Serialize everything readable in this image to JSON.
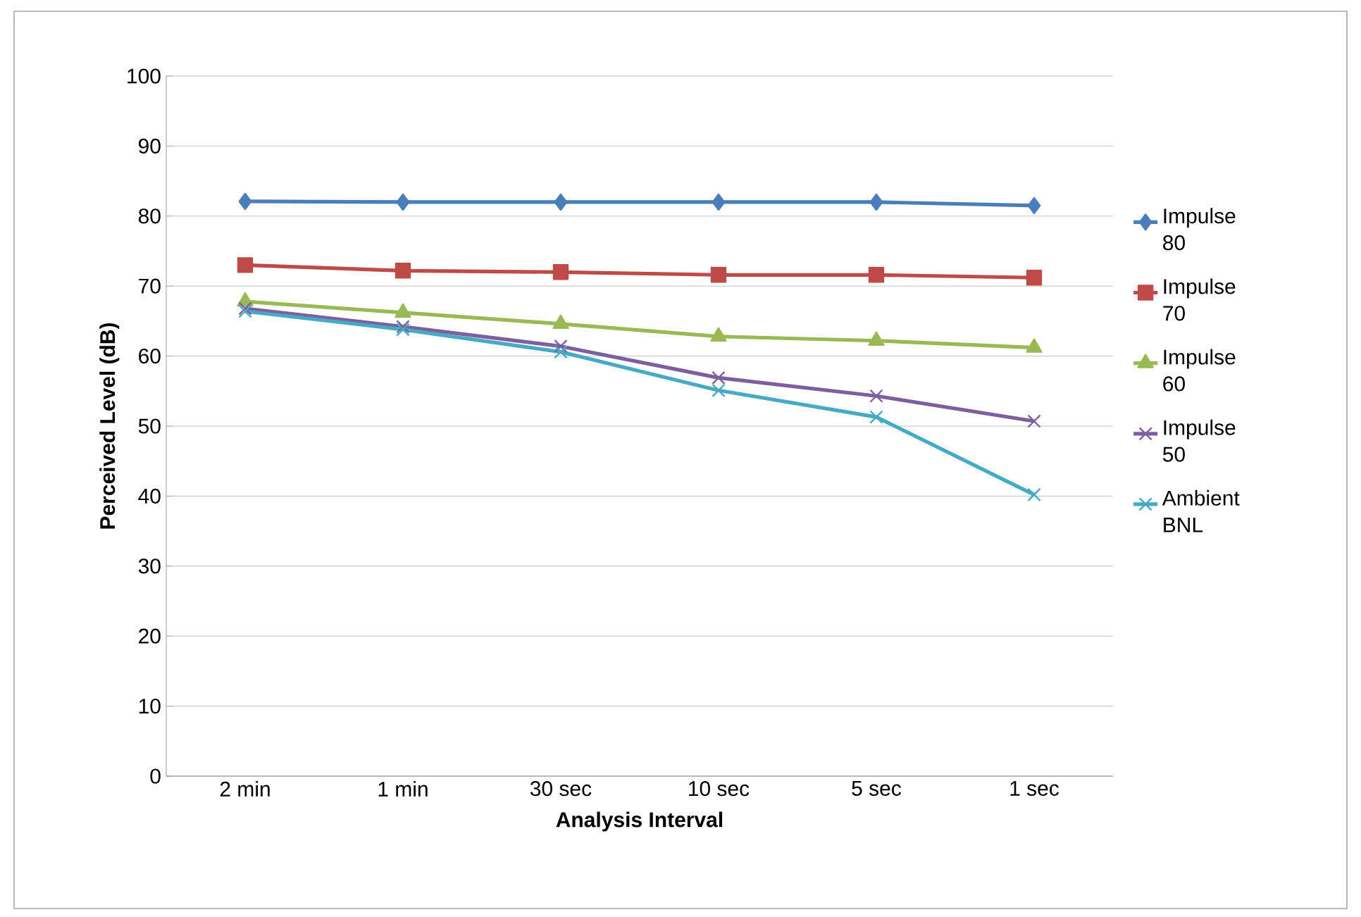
{
  "chart_data": {
    "type": "line",
    "categories": [
      "2 min",
      "1 min",
      "30 sec",
      "10 sec",
      "5 sec",
      "1 sec"
    ],
    "series": [
      {
        "name": "Impulse 80",
        "color": "#4a7ebb",
        "marker": "diamond",
        "values": [
          82.1,
          82.0,
          82.0,
          82.0,
          82.0,
          81.5
        ]
      },
      {
        "name": "Impulse 70",
        "color": "#be4b48",
        "marker": "square",
        "values": [
          73.0,
          72.2,
          72.0,
          71.6,
          71.6,
          71.2
        ]
      },
      {
        "name": "Impulse 60",
        "color": "#98b954",
        "marker": "triangle",
        "values": [
          67.8,
          66.2,
          64.6,
          62.8,
          62.2,
          61.2
        ]
      },
      {
        "name": "Impulse 50",
        "color": "#7d5fa0",
        "marker": "cross",
        "values": [
          66.8,
          64.2,
          61.4,
          56.9,
          54.3,
          50.7
        ]
      },
      {
        "name": "Ambient BNL",
        "color": "#46aac5",
        "marker": "cross",
        "values": [
          66.4,
          63.8,
          60.6,
          55.1,
          51.3,
          40.2
        ]
      }
    ],
    "xlabel": "Analysis Interval",
    "ylabel": "Perceived Level (dB)",
    "ylim": [
      0,
      100
    ],
    "yticks": [
      0,
      10,
      20,
      30,
      40,
      50,
      60,
      70,
      80,
      90,
      100
    ],
    "grid": "y",
    "legend": "right",
    "line_style": "solid"
  }
}
